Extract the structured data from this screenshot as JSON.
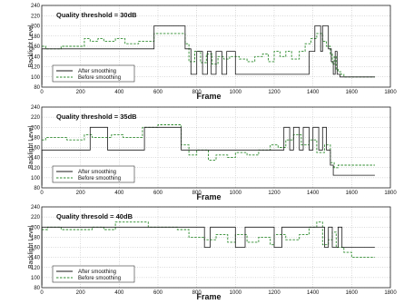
{
  "chart_data": [
    {
      "type": "line",
      "annotation": "Quality threshold = 30dB",
      "xlabel": "Frame",
      "ylabel": "Backlight Level",
      "xlim": [
        0,
        1800
      ],
      "ylim": [
        80,
        240
      ],
      "xticks": [
        0,
        200,
        400,
        600,
        800,
        1000,
        1200,
        1400,
        1600,
        1800
      ],
      "yticks": [
        80,
        100,
        120,
        140,
        160,
        180,
        200,
        220,
        240
      ],
      "grid": true,
      "legend_position": "bottom-left",
      "series": [
        {
          "name": "After smoothing",
          "style": "solid",
          "color": "#1a1a1a",
          "x": [
            0,
            1,
            1,
            580,
            580,
            740,
            740,
            770,
            770,
            800,
            800,
            830,
            830,
            855,
            855,
            875,
            875,
            900,
            900,
            930,
            930,
            955,
            955,
            1000,
            1000,
            1380,
            1380,
            1410,
            1410,
            1440,
            1440,
            1450,
            1450,
            1480,
            1480,
            1495,
            1495,
            1505,
            1505,
            1515,
            1515,
            1525,
            1525,
            1540,
            1540,
            1720
          ],
          "y": [
            85,
            85,
            155,
            155,
            200,
            200,
            155,
            155,
            105,
            105,
            150,
            150,
            105,
            105,
            150,
            150,
            105,
            105,
            150,
            150,
            105,
            105,
            150,
            150,
            105,
            105,
            150,
            150,
            200,
            200,
            150,
            150,
            200,
            200,
            155,
            155,
            130,
            130,
            105,
            105,
            150,
            150,
            105,
            105,
            100,
            100
          ]
        },
        {
          "name": "Before smoothing",
          "style": "dashed",
          "color": "#2e8b2e",
          "x": [
            0,
            20,
            20,
            100,
            100,
            220,
            220,
            250,
            250,
            290,
            290,
            320,
            320,
            380,
            380,
            430,
            430,
            500,
            500,
            580,
            580,
            740,
            740,
            760,
            760,
            790,
            790,
            820,
            820,
            850,
            850,
            880,
            880,
            910,
            910,
            940,
            940,
            970,
            970,
            1020,
            1020,
            1060,
            1060,
            1100,
            1100,
            1140,
            1140,
            1170,
            1170,
            1200,
            1200,
            1230,
            1230,
            1260,
            1260,
            1290,
            1290,
            1330,
            1330,
            1360,
            1360,
            1390,
            1390,
            1420,
            1420,
            1450,
            1450,
            1470,
            1470,
            1490,
            1490,
            1500,
            1500,
            1510,
            1510,
            1520,
            1520,
            1530,
            1530,
            1545,
            1545,
            1560,
            1560,
            1720
          ],
          "y": [
            160,
            160,
            155,
            155,
            160,
            160,
            175,
            175,
            170,
            170,
            175,
            175,
            170,
            170,
            175,
            175,
            165,
            165,
            170,
            170,
            185,
            185,
            165,
            165,
            130,
            130,
            150,
            150,
            128,
            128,
            145,
            145,
            125,
            125,
            140,
            140,
            135,
            135,
            140,
            140,
            135,
            135,
            130,
            130,
            140,
            140,
            145,
            145,
            130,
            130,
            150,
            150,
            140,
            140,
            150,
            150,
            135,
            135,
            150,
            150,
            165,
            165,
            175,
            175,
            185,
            185,
            170,
            170,
            160,
            160,
            145,
            145,
            125,
            125,
            140,
            140,
            115,
            115,
            110,
            110,
            105,
            105,
            100,
            100
          ]
        }
      ]
    },
    {
      "type": "line",
      "annotation": "Quality threshold = 35dB",
      "xlabel": "Frame",
      "ylabel": "Backlight Level",
      "xlim": [
        0,
        1800
      ],
      "ylim": [
        80,
        240
      ],
      "xticks": [
        0,
        200,
        400,
        600,
        800,
        1000,
        1200,
        1400,
        1600,
        1800
      ],
      "yticks": [
        80,
        100,
        120,
        140,
        160,
        180,
        200,
        220,
        240
      ],
      "grid": true,
      "legend_position": "bottom-left",
      "series": [
        {
          "name": "After smoothing",
          "style": "solid",
          "color": "#1a1a1a",
          "x": [
            0,
            1,
            1,
            250,
            250,
            340,
            340,
            530,
            530,
            720,
            720,
            1250,
            1250,
            1280,
            1280,
            1300,
            1300,
            1330,
            1330,
            1350,
            1350,
            1380,
            1380,
            1400,
            1400,
            1430,
            1430,
            1450,
            1450,
            1470,
            1470,
            1490,
            1490,
            1505,
            1505,
            1530,
            1530,
            1720
          ],
          "y": [
            85,
            85,
            155,
            155,
            200,
            200,
            155,
            155,
            200,
            200,
            155,
            155,
            200,
            200,
            155,
            155,
            200,
            200,
            155,
            155,
            200,
            200,
            155,
            155,
            200,
            200,
            155,
            155,
            200,
            200,
            155,
            155,
            125,
            125,
            105,
            105,
            105,
            105
          ]
        },
        {
          "name": "Before smoothing",
          "style": "dashed",
          "color": "#2e8b2e",
          "x": [
            0,
            20,
            20,
            130,
            130,
            220,
            220,
            260,
            260,
            360,
            360,
            420,
            420,
            520,
            520,
            600,
            600,
            720,
            720,
            760,
            760,
            800,
            800,
            860,
            860,
            900,
            900,
            960,
            960,
            1000,
            1000,
            1060,
            1060,
            1120,
            1120,
            1180,
            1180,
            1220,
            1220,
            1260,
            1260,
            1300,
            1300,
            1340,
            1340,
            1380,
            1380,
            1420,
            1420,
            1460,
            1460,
            1490,
            1490,
            1510,
            1510,
            1530,
            1530,
            1720
          ],
          "y": [
            175,
            175,
            180,
            180,
            175,
            175,
            185,
            185,
            180,
            180,
            185,
            185,
            180,
            180,
            200,
            200,
            205,
            205,
            165,
            165,
            145,
            145,
            155,
            155,
            135,
            135,
            145,
            145,
            140,
            140,
            150,
            150,
            145,
            145,
            155,
            155,
            165,
            165,
            160,
            160,
            175,
            175,
            185,
            185,
            165,
            165,
            175,
            175,
            150,
            150,
            165,
            165,
            130,
            130,
            120,
            120,
            125,
            125
          ]
        }
      ]
    },
    {
      "type": "line",
      "annotation": "Quality thresold = 40dB",
      "xlabel": "Frame",
      "ylabel": "Backlight Level",
      "xlim": [
        0,
        1800
      ],
      "ylim": [
        80,
        240
      ],
      "xticks": [
        0,
        200,
        400,
        600,
        800,
        1000,
        1200,
        1400,
        1600,
        1800
      ],
      "yticks": [
        80,
        100,
        120,
        140,
        160,
        180,
        200,
        220,
        240
      ],
      "grid": true,
      "legend_position": "bottom-left",
      "series": [
        {
          "name": "After smoothing",
          "style": "solid",
          "color": "#1a1a1a",
          "x": [
            0,
            1,
            1,
            840,
            840,
            870,
            870,
            1000,
            1000,
            1050,
            1050,
            1200,
            1200,
            1240,
            1240,
            1460,
            1460,
            1480,
            1480,
            1500,
            1500,
            1530,
            1530,
            1550,
            1550,
            1720
          ],
          "y": [
            85,
            85,
            200,
            200,
            160,
            160,
            200,
            200,
            160,
            160,
            200,
            200,
            160,
            160,
            200,
            200,
            160,
            160,
            200,
            200,
            160,
            160,
            200,
            200,
            160,
            160
          ]
        },
        {
          "name": "Before smoothing",
          "style": "dashed",
          "color": "#2e8b2e",
          "x": [
            0,
            30,
            30,
            100,
            100,
            260,
            260,
            320,
            320,
            380,
            380,
            550,
            550,
            700,
            700,
            760,
            760,
            840,
            840,
            900,
            900,
            960,
            960,
            1000,
            1000,
            1060,
            1060,
            1120,
            1120,
            1180,
            1180,
            1200,
            1200,
            1260,
            1260,
            1330,
            1330,
            1380,
            1380,
            1420,
            1420,
            1450,
            1450,
            1480,
            1480,
            1500,
            1500,
            1520,
            1520,
            1560,
            1560,
            1600,
            1600,
            1720
          ],
          "y": [
            195,
            195,
            200,
            200,
            195,
            195,
            200,
            200,
            195,
            195,
            210,
            210,
            200,
            200,
            195,
            195,
            180,
            180,
            175,
            175,
            185,
            185,
            170,
            170,
            185,
            185,
            170,
            170,
            180,
            180,
            165,
            165,
            185,
            185,
            175,
            175,
            185,
            185,
            200,
            200,
            210,
            210,
            165,
            165,
            175,
            175,
            190,
            190,
            160,
            160,
            150,
            150,
            140,
            140
          ]
        }
      ]
    }
  ]
}
